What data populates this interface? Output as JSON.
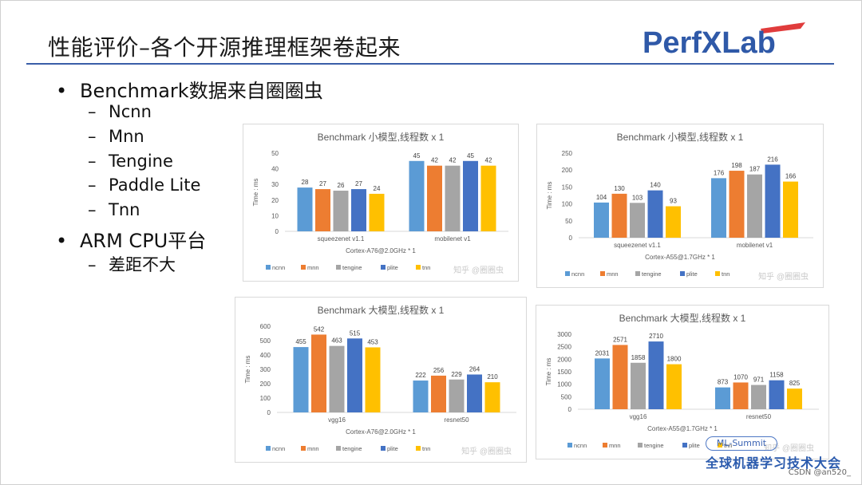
{
  "slide": {
    "title": "性能评价–各个开源推理框架卷起来",
    "logo_text": "PerfXLab",
    "accent_color": "#3a5ea8"
  },
  "bullets": [
    {
      "level": 1,
      "text": "Benchmark数据来自圈圈虫"
    },
    {
      "level": 2,
      "text": "Ncnn"
    },
    {
      "level": 2,
      "text": "Mnn"
    },
    {
      "level": 2,
      "text": "Tengine"
    },
    {
      "level": 2,
      "text": "Paddle Lite"
    },
    {
      "level": 2,
      "text": "Tnn"
    },
    {
      "level": 1,
      "text": "ARM CPU平台"
    },
    {
      "level": 2,
      "text": "差距不大"
    }
  ],
  "bullet_symbols": {
    "level1": "•",
    "level2": "–"
  },
  "footer": {
    "ml_summit": "ML-Summit",
    "conference": "全球机器学习技术大会",
    "csdn": "CSDN @an520_"
  },
  "series_colors": {
    "ncnn": "#5b9bd5",
    "mnn": "#ed7d31",
    "tengine": "#a5a5a5",
    "plite": "#4472c4",
    "tnn": "#ffc000"
  },
  "chart_data": [
    {
      "type": "bar",
      "title": "Benchmark 小模型,线程数 x 1",
      "ylabel": "Time : ms",
      "xlabel": "Cortex-A76@2.0GHz * 1",
      "watermark": "知乎 @圈圈虫",
      "ylim": [
        0,
        50
      ],
      "yticks": [
        0,
        10,
        20,
        30,
        40,
        50
      ],
      "categories": [
        "squeezenet v1.1",
        "mobilenet v1"
      ],
      "series": [
        {
          "name": "ncnn",
          "values": [
            28,
            45
          ]
        },
        {
          "name": "mnn",
          "values": [
            27,
            42
          ]
        },
        {
          "name": "tengine",
          "values": [
            26,
            42
          ]
        },
        {
          "name": "plite",
          "values": [
            27,
            45
          ]
        },
        {
          "name": "tnn",
          "values": [
            24,
            42
          ]
        }
      ],
      "legend": "bottom"
    },
    {
      "type": "bar",
      "title": "Benchmark 小模型,线程数 x 1",
      "ylabel": "Time : ms",
      "xlabel": "Cortex-A55@1.7GHz * 1",
      "watermark": "知乎 @圈圈虫",
      "ylim": [
        0,
        250
      ],
      "yticks": [
        0,
        50,
        100,
        150,
        200,
        250
      ],
      "categories": [
        "squeezenet v1.1",
        "mobilenet v1"
      ],
      "series": [
        {
          "name": "ncnn",
          "values": [
            104,
            176
          ]
        },
        {
          "name": "mnn",
          "values": [
            130,
            198
          ]
        },
        {
          "name": "tengine",
          "values": [
            103,
            187
          ]
        },
        {
          "name": "plite",
          "values": [
            140,
            216
          ]
        },
        {
          "name": "tnn",
          "values": [
            93,
            166
          ]
        }
      ],
      "legend": "bottom"
    },
    {
      "type": "bar",
      "title": "Benchmark 大模型,线程数 x 1",
      "ylabel": "Time : ms",
      "xlabel": "Cortex-A76@2.0GHz * 1",
      "watermark": "知乎 @圈圈虫",
      "ylim": [
        0,
        600
      ],
      "yticks": [
        0,
        100,
        200,
        300,
        400,
        500,
        600
      ],
      "categories": [
        "vgg16",
        "resnet50"
      ],
      "series": [
        {
          "name": "ncnn",
          "values": [
            455,
            222
          ]
        },
        {
          "name": "mnn",
          "values": [
            542,
            256
          ]
        },
        {
          "name": "tengine",
          "values": [
            463,
            229
          ]
        },
        {
          "name": "plite",
          "values": [
            515,
            264
          ]
        },
        {
          "name": "tnn",
          "values": [
            453,
            210
          ]
        }
      ],
      "legend": "bottom"
    },
    {
      "type": "bar",
      "title": "Benchmark 大模型,线程数 x 1",
      "ylabel": "Time : ms",
      "xlabel": "Cortex-A55@1.7GHz * 1",
      "watermark": "知乎 @圈圈虫",
      "ylim": [
        0,
        3000
      ],
      "yticks": [
        0,
        500,
        1000,
        1500,
        2000,
        2500,
        3000
      ],
      "categories": [
        "vgg16",
        "resnet50"
      ],
      "series": [
        {
          "name": "ncnn",
          "values": [
            2031,
            873
          ]
        },
        {
          "name": "mnn",
          "values": [
            2571,
            1070
          ]
        },
        {
          "name": "tengine",
          "values": [
            1858,
            971
          ]
        },
        {
          "name": "plite",
          "values": [
            2710,
            1158
          ]
        },
        {
          "name": "tnn",
          "values": [
            1800,
            825
          ]
        }
      ],
      "legend": "bottom"
    }
  ]
}
